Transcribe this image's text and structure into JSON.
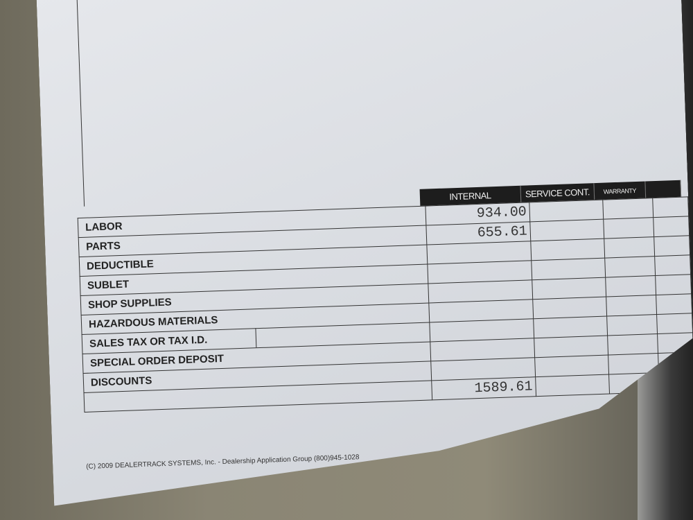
{
  "form": {
    "columns": [
      "INTERNAL",
      "SERVICE CONT.",
      "WARRANTY",
      ""
    ],
    "rows": [
      {
        "label": "LABOR",
        "internal": "934.00"
      },
      {
        "label": "PARTS",
        "internal": "655.61"
      },
      {
        "label": "DEDUCTIBLE",
        "internal": ""
      },
      {
        "label": "SUBLET",
        "internal": ""
      },
      {
        "label": "SHOP SUPPLIES",
        "internal": ""
      },
      {
        "label": "HAZARDOUS MATERIALS",
        "internal": ""
      },
      {
        "label": "SALES TAX OR TAX I.D.",
        "internal": ""
      },
      {
        "label": "SPECIAL ORDER DEPOSIT",
        "internal": ""
      },
      {
        "label": "DISCOUNTS",
        "internal": ""
      },
      {
        "label": "",
        "internal": "1589.61"
      }
    ]
  },
  "footer": "(C) 2009 DEALERTRACK SYSTEMS, Inc. - Dealership Application Group (800)945-1028"
}
